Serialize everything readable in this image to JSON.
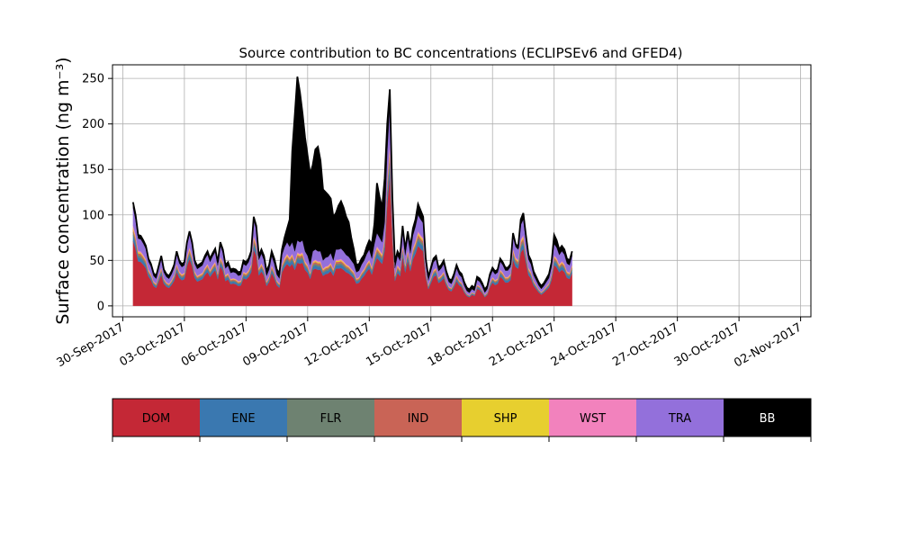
{
  "chart_data": {
    "type": "area",
    "stacked": true,
    "title": "Source contribution to BC concentrations (ECLIPSEv6 and GFED4)",
    "ylabel": "Surface concentration (ng m⁻³)",
    "xlabel": "",
    "x_range": [
      "2017-09-29T12:00",
      "2017-11-02T12:00"
    ],
    "ylim": [
      -12,
      265
    ],
    "yticks": [
      0,
      50,
      100,
      150,
      200,
      250
    ],
    "xticks": [
      "30-Sep-2017",
      "03-Oct-2017",
      "06-Oct-2017",
      "09-Oct-2017",
      "12-Oct-2017",
      "15-Oct-2017",
      "18-Oct-2017",
      "21-Oct-2017",
      "24-Oct-2017",
      "27-Oct-2017",
      "30-Oct-2017",
      "02-Nov-2017"
    ],
    "grid": true,
    "legend": "colorbar below plot",
    "series": [
      {
        "name": "DOM",
        "color": "#c42836"
      },
      {
        "name": "ENE",
        "color": "#3a78b0"
      },
      {
        "name": "FLR",
        "color": "#6e8271"
      },
      {
        "name": "IND",
        "color": "#c96456"
      },
      {
        "name": "SHP",
        "color": "#e7cf2f"
      },
      {
        "name": "WST",
        "color": "#f282bd"
      },
      {
        "name": "TRA",
        "color": "#9370db"
      },
      {
        "name": "BB",
        "color": "#000000"
      }
    ],
    "time_start": "2017-09-30T12:00",
    "time_step_hours": 3,
    "total_keypoints": [
      [
        0,
        114
      ],
      [
        1,
        100
      ],
      [
        2,
        78
      ],
      [
        3,
        77
      ],
      [
        4,
        72
      ],
      [
        5,
        66
      ],
      [
        6,
        52
      ],
      [
        7,
        46
      ],
      [
        8,
        36
      ],
      [
        9,
        33
      ],
      [
        10,
        44
      ],
      [
        11,
        55
      ],
      [
        12,
        40
      ],
      [
        13,
        35
      ],
      [
        14,
        33
      ],
      [
        15,
        38
      ],
      [
        16,
        45
      ],
      [
        17,
        60
      ],
      [
        18,
        50
      ],
      [
        19,
        46
      ],
      [
        20,
        48
      ],
      [
        21,
        70
      ],
      [
        22,
        82
      ],
      [
        23,
        70
      ],
      [
        24,
        50
      ],
      [
        25,
        44
      ],
      [
        26,
        46
      ],
      [
        27,
        48
      ],
      [
        28,
        55
      ],
      [
        29,
        60
      ],
      [
        30,
        52
      ],
      [
        31,
        58
      ],
      [
        32,
        63
      ],
      [
        33,
        48
      ],
      [
        34,
        70
      ],
      [
        35,
        62
      ],
      [
        36,
        45
      ],
      [
        37,
        48
      ],
      [
        38,
        40
      ],
      [
        39,
        41
      ],
      [
        40,
        40
      ],
      [
        41,
        37
      ],
      [
        42,
        38
      ],
      [
        43,
        50
      ],
      [
        44,
        48
      ],
      [
        45,
        52
      ],
      [
        46,
        60
      ],
      [
        47,
        98
      ],
      [
        48,
        88
      ],
      [
        49,
        55
      ],
      [
        50,
        62
      ],
      [
        51,
        55
      ],
      [
        52,
        38
      ],
      [
        53,
        45
      ],
      [
        54,
        60
      ],
      [
        55,
        52
      ],
      [
        56,
        40
      ],
      [
        57,
        36
      ],
      [
        58,
        62
      ],
      [
        59,
        75
      ],
      [
        60,
        85
      ],
      [
        61,
        95
      ],
      [
        62,
        170
      ],
      [
        63,
        210
      ],
      [
        64,
        252
      ],
      [
        65,
        235
      ],
      [
        66,
        212
      ],
      [
        67,
        185
      ],
      [
        68,
        165
      ],
      [
        69,
        145
      ],
      [
        70,
        155
      ],
      [
        71,
        172
      ],
      [
        72,
        175
      ],
      [
        73,
        160
      ],
      [
        74,
        128
      ],
      [
        75,
        125
      ],
      [
        76,
        122
      ],
      [
        77,
        118
      ],
      [
        78,
        98
      ],
      [
        79,
        102
      ],
      [
        80,
        110
      ],
      [
        81,
        115
      ],
      [
        82,
        108
      ],
      [
        83,
        98
      ],
      [
        84,
        92
      ],
      [
        85,
        75
      ],
      [
        86,
        62
      ],
      [
        87,
        45
      ],
      [
        88,
        46
      ],
      [
        89,
        52
      ],
      [
        90,
        56
      ],
      [
        91,
        65
      ],
      [
        92,
        72
      ],
      [
        93,
        68
      ],
      [
        94,
        90
      ],
      [
        95,
        135
      ],
      [
        96,
        120
      ],
      [
        97,
        108
      ],
      [
        98,
        140
      ],
      [
        99,
        200
      ],
      [
        100,
        238
      ],
      [
        101,
        120
      ],
      [
        102,
        48
      ],
      [
        103,
        60
      ],
      [
        104,
        55
      ],
      [
        105,
        88
      ],
      [
        106,
        62
      ],
      [
        107,
        82
      ],
      [
        108,
        65
      ],
      [
        109,
        85
      ],
      [
        110,
        95
      ],
      [
        111,
        112
      ],
      [
        112,
        105
      ],
      [
        113,
        98
      ],
      [
        114,
        52
      ],
      [
        115,
        32
      ],
      [
        116,
        42
      ],
      [
        117,
        52
      ],
      [
        118,
        55
      ],
      [
        119,
        42
      ],
      [
        120,
        45
      ],
      [
        121,
        50
      ],
      [
        122,
        38
      ],
      [
        123,
        30
      ],
      [
        124,
        28
      ],
      [
        125,
        35
      ],
      [
        126,
        45
      ],
      [
        127,
        38
      ],
      [
        128,
        35
      ],
      [
        129,
        26
      ],
      [
        130,
        20
      ],
      [
        131,
        18
      ],
      [
        132,
        22
      ],
      [
        133,
        20
      ],
      [
        134,
        32
      ],
      [
        135,
        30
      ],
      [
        136,
        25
      ],
      [
        137,
        18
      ],
      [
        138,
        22
      ],
      [
        139,
        35
      ],
      [
        140,
        42
      ],
      [
        141,
        38
      ],
      [
        142,
        40
      ],
      [
        143,
        52
      ],
      [
        144,
        48
      ],
      [
        145,
        42
      ],
      [
        146,
        42
      ],
      [
        147,
        46
      ],
      [
        148,
        80
      ],
      [
        149,
        68
      ],
      [
        150,
        65
      ],
      [
        151,
        95
      ],
      [
        152,
        102
      ],
      [
        153,
        78
      ],
      [
        154,
        56
      ],
      [
        155,
        50
      ],
      [
        156,
        38
      ],
      [
        157,
        32
      ],
      [
        158,
        26
      ],
      [
        159,
        22
      ],
      [
        160,
        25
      ],
      [
        161,
        30
      ],
      [
        162,
        35
      ],
      [
        163,
        48
      ],
      [
        164,
        78
      ],
      [
        165,
        72
      ],
      [
        166,
        62
      ],
      [
        167,
        66
      ],
      [
        168,
        62
      ],
      [
        169,
        52
      ],
      [
        170,
        50
      ],
      [
        171,
        60
      ]
    ],
    "bb_keypoints": [
      [
        0,
        6
      ],
      [
        2,
        4
      ],
      [
        6,
        3
      ],
      [
        47,
        4
      ],
      [
        58,
        6
      ],
      [
        60,
        15
      ],
      [
        61,
        30
      ],
      [
        62,
        100
      ],
      [
        63,
        150
      ],
      [
        64,
        180
      ],
      [
        65,
        165
      ],
      [
        66,
        140
      ],
      [
        67,
        125
      ],
      [
        68,
        110
      ],
      [
        69,
        100
      ],
      [
        70,
        95
      ],
      [
        71,
        110
      ],
      [
        72,
        115
      ],
      [
        73,
        100
      ],
      [
        74,
        78
      ],
      [
        75,
        72
      ],
      [
        76,
        68
      ],
      [
        77,
        60
      ],
      [
        78,
        48
      ],
      [
        79,
        40
      ],
      [
        80,
        48
      ],
      [
        81,
        52
      ],
      [
        82,
        48
      ],
      [
        83,
        42
      ],
      [
        84,
        38
      ],
      [
        85,
        25
      ],
      [
        86,
        16
      ],
      [
        87,
        8
      ],
      [
        90,
        6
      ],
      [
        92,
        10
      ],
      [
        94,
        22
      ],
      [
        95,
        55
      ],
      [
        96,
        45
      ],
      [
        97,
        38
      ],
      [
        98,
        48
      ],
      [
        99,
        30
      ],
      [
        100,
        20
      ],
      [
        101,
        8
      ],
      [
        103,
        5
      ],
      [
        110,
        8
      ],
      [
        111,
        12
      ],
      [
        112,
        10
      ],
      [
        114,
        4
      ],
      [
        150,
        3
      ],
      [
        151,
        6
      ],
      [
        152,
        7
      ],
      [
        153,
        5
      ],
      [
        160,
        3
      ],
      [
        163,
        5
      ],
      [
        164,
        10
      ],
      [
        165,
        8
      ],
      [
        166,
        6
      ],
      [
        171,
        5
      ]
    ],
    "fractions": {
      "DOM": 0.66,
      "ENE": 0.06,
      "FLR": 0.03,
      "IND": 0.03,
      "SHP": 0.02,
      "WST": 0.02
    }
  },
  "legend_labels": [
    "DOM",
    "ENE",
    "FLR",
    "IND",
    "SHP",
    "WST",
    "TRA",
    "BB"
  ]
}
